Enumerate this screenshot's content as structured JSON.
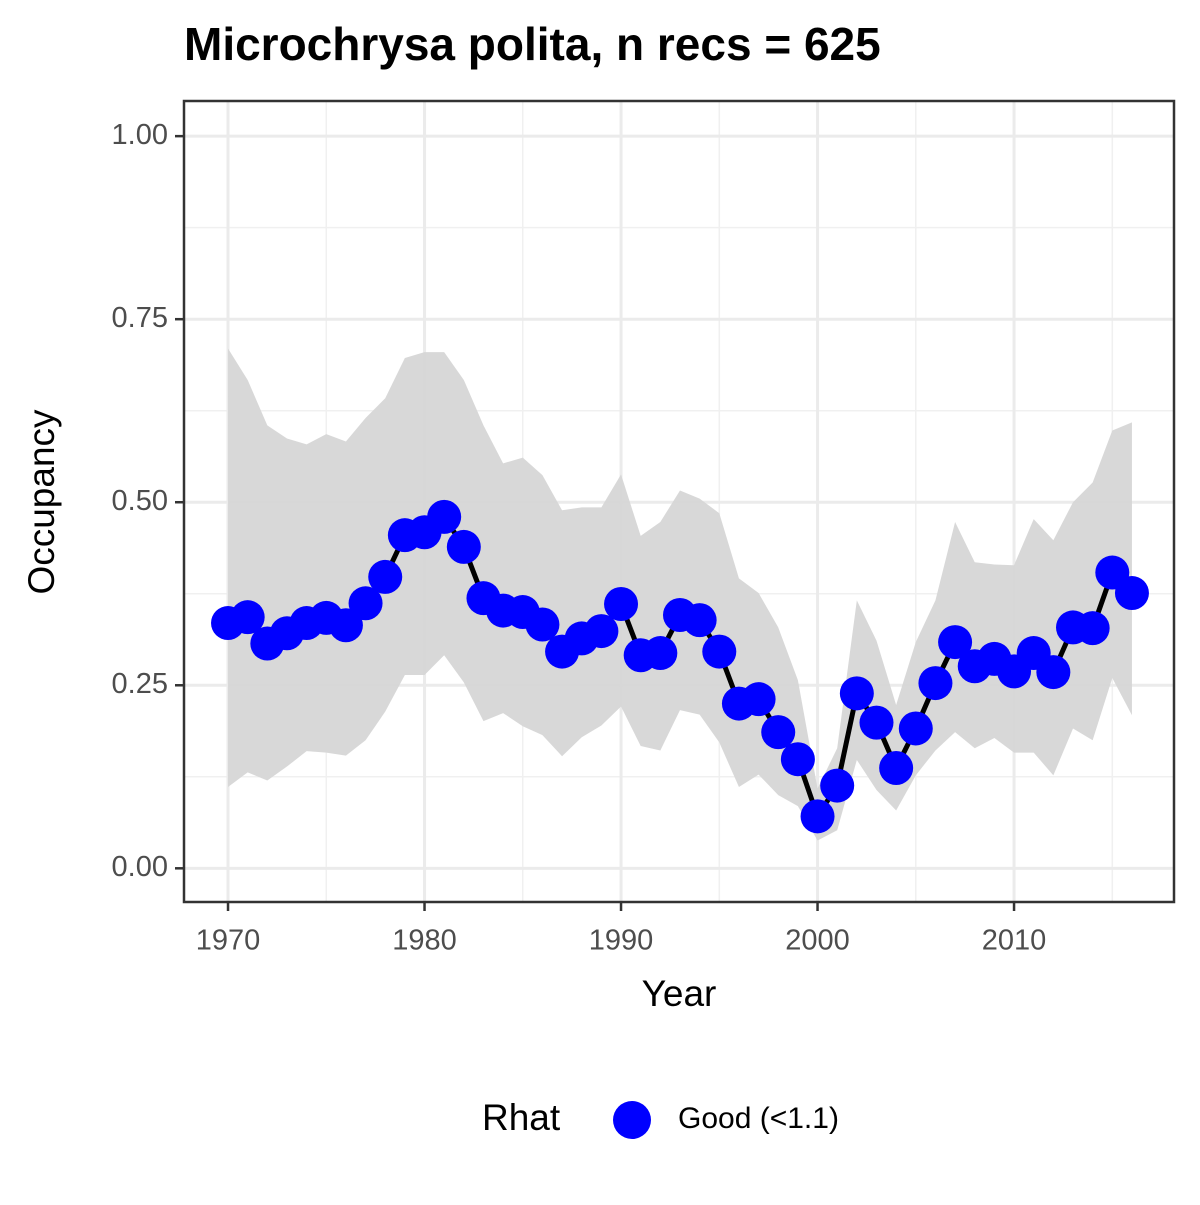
{
  "chart_data": {
    "type": "line",
    "title": "Microchrysa polita, n recs = 625",
    "x_label": "Year",
    "y_label": "Occupancy",
    "x": [
      1970,
      1971,
      1972,
      1973,
      1974,
      1975,
      1976,
      1977,
      1978,
      1979,
      1980,
      1981,
      1982,
      1983,
      1984,
      1985,
      1986,
      1987,
      1988,
      1989,
      1990,
      1991,
      1992,
      1993,
      1994,
      1995,
      1996,
      1997,
      1998,
      1999,
      2000,
      2001,
      2002,
      2003,
      2004,
      2005,
      2006,
      2007,
      2008,
      2009,
      2010,
      2011,
      2012,
      2013,
      2014,
      2015,
      2016
    ],
    "series": [
      {
        "name": "Good (<1.1)",
        "color": "#0000ff",
        "line_color": "#000000",
        "values": [
          0.335,
          0.343,
          0.307,
          0.321,
          0.335,
          0.342,
          0.332,
          0.362,
          0.398,
          0.455,
          0.459,
          0.48,
          0.439,
          0.369,
          0.352,
          0.35,
          0.333,
          0.296,
          0.314,
          0.324,
          0.361,
          0.291,
          0.294,
          0.346,
          0.339,
          0.296,
          0.225,
          0.231,
          0.186,
          0.149,
          0.071,
          0.113,
          0.239,
          0.199,
          0.137,
          0.191,
          0.253,
          0.309,
          0.276,
          0.286,
          0.269,
          0.294,
          0.268,
          0.329,
          0.328,
          0.404,
          0.376
        ]
      }
    ],
    "band": {
      "color": "#d6d6d6",
      "lower": [
        0.111,
        0.131,
        0.12,
        0.139,
        0.16,
        0.158,
        0.154,
        0.175,
        0.214,
        0.264,
        0.264,
        0.291,
        0.254,
        0.201,
        0.212,
        0.194,
        0.182,
        0.153,
        0.179,
        0.195,
        0.221,
        0.167,
        0.161,
        0.216,
        0.21,
        0.172,
        0.111,
        0.128,
        0.1,
        0.085,
        0.038,
        0.052,
        0.148,
        0.107,
        0.079,
        0.127,
        0.161,
        0.186,
        0.164,
        0.178,
        0.158,
        0.158,
        0.127,
        0.191,
        0.175,
        0.26,
        0.209
      ],
      "upper": [
        0.71,
        0.667,
        0.605,
        0.587,
        0.579,
        0.593,
        0.583,
        0.615,
        0.642,
        0.697,
        0.705,
        0.705,
        0.667,
        0.605,
        0.553,
        0.561,
        0.537,
        0.489,
        0.493,
        0.493,
        0.538,
        0.454,
        0.473,
        0.516,
        0.505,
        0.485,
        0.396,
        0.376,
        0.329,
        0.257,
        0.109,
        0.164,
        0.366,
        0.311,
        0.223,
        0.309,
        0.366,
        0.473,
        0.418,
        0.415,
        0.414,
        0.477,
        0.448,
        0.5,
        0.527,
        0.598,
        0.609
      ]
    },
    "xlim": [
      1967.76,
      2018.14
    ],
    "ylim": [
      -0.046,
      1.048
    ],
    "xticks": [
      1970,
      1980,
      1990,
      2000,
      2010
    ],
    "yticks": [
      {
        "value": 0,
        "label": "0.00"
      },
      {
        "value": 0.25,
        "label": "0.25"
      },
      {
        "value": 0.5,
        "label": "0.50"
      },
      {
        "value": 0.75,
        "label": "0.75"
      },
      {
        "value": 1,
        "label": "1.00"
      }
    ],
    "grid": true,
    "legend_title": "Rhat",
    "legend_position": "bottom"
  }
}
